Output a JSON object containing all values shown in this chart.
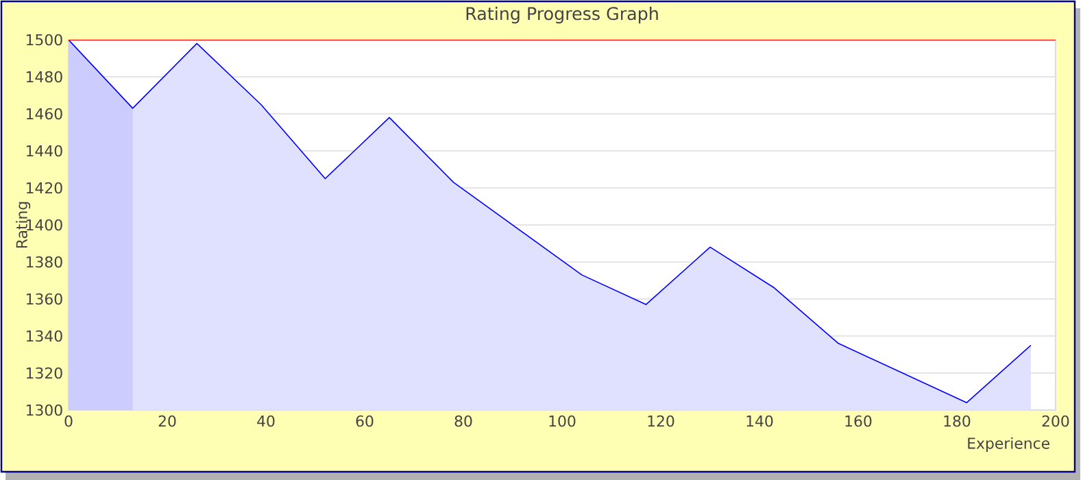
{
  "chart_data": {
    "type": "area",
    "title": "Rating Progress Graph",
    "xlabel": "Experience",
    "ylabel": "Rating",
    "x": [
      0,
      13,
      26,
      39,
      52,
      65,
      78,
      91,
      104,
      117,
      130,
      143,
      156,
      169,
      182,
      195
    ],
    "series": [
      {
        "color": "#0000ff",
        "values": [
          1500,
          1463,
          1498,
          1465,
          1425,
          1458,
          1423,
          1398,
          1373,
          1357,
          1388,
          1366,
          1336,
          1320,
          1304,
          1335
        ]
      }
    ],
    "xlim": [
      0,
      200
    ],
    "ylim": [
      1300,
      1500
    ],
    "xticks": [
      0,
      20,
      40,
      60,
      80,
      100,
      120,
      140,
      160,
      180,
      200
    ],
    "yticks": [
      1300,
      1320,
      1340,
      1360,
      1380,
      1400,
      1420,
      1440,
      1460,
      1480,
      1500
    ],
    "grid": "y",
    "ref_lines": [
      {
        "axis": "y",
        "value": 1500,
        "color": "#ff0000"
      }
    ],
    "bands": [
      {
        "axis": "x",
        "from": 0,
        "to": 13,
        "color": "#ccccff"
      }
    ]
  }
}
